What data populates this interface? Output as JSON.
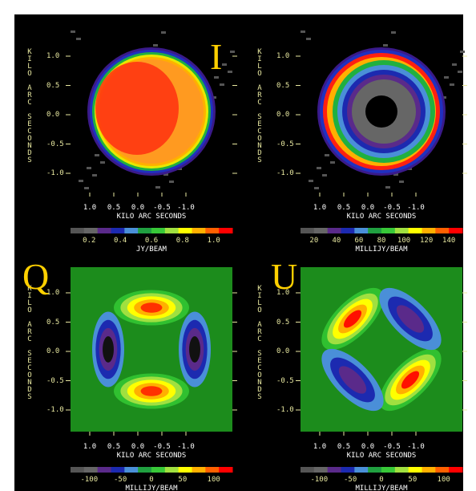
{
  "panels": [
    {
      "label": "I",
      "y_axis_label": "KILO ARC SECONDS",
      "y_ticks": [
        "1.0",
        "0.5",
        "0.0",
        "-0.5",
        "-1.0"
      ],
      "x_ticks": [
        "1.0",
        "0.5",
        "0.0",
        "-0.5",
        "-1.0"
      ],
      "x_axis_label": "KILO ARC SECONDS",
      "colorbar_ticks": [
        "0.2",
        "0.4",
        "0.6",
        "0.8",
        "1.0"
      ],
      "colorbar_unit": "JY/BEAM"
    },
    {
      "y_axis_label": "KILO ARC SECONDS",
      "y_ticks": [
        "1.0",
        "0.5",
        "0.0",
        "-0.5",
        "-1.0"
      ],
      "x_ticks": [
        "1.0",
        "0.5",
        "0.0",
        "-0.5",
        "-1.0"
      ],
      "x_axis_label": "KILO ARC SECONDS",
      "colorbar_ticks": [
        "20",
        "40",
        "60",
        "80",
        "100",
        "120",
        "140"
      ],
      "colorbar_unit": "MILLIJY/BEAM"
    },
    {
      "label": "Q",
      "y_axis_label": "KILO ARC SECONDS",
      "y_ticks": [
        "1.0",
        "0.5",
        "0.0",
        "-0.5",
        "-1.0"
      ],
      "x_ticks": [
        "1.0",
        "0.5",
        "0.0",
        "-0.5",
        "-1.0"
      ],
      "x_axis_label": "KILO ARC SECONDS",
      "colorbar_ticks": [
        "-100",
        "-50",
        "0",
        "50",
        "100"
      ],
      "colorbar_unit": "MILLIJY/BEAM"
    },
    {
      "label": "U",
      "y_axis_label": "KILO ARC SECONDS",
      "y_ticks": [
        "1.0",
        "0.5",
        "0.0",
        "-0.5",
        "-1.0"
      ],
      "x_ticks": [
        "1.0",
        "0.5",
        "0.0",
        "-0.5",
        "-1.0"
      ],
      "x_axis_label": "KILO ARC SECONDS",
      "colorbar_ticks": [
        "-100",
        "-50",
        "0",
        "50",
        "100"
      ],
      "colorbar_unit": "MILLIJY/BEAM"
    }
  ]
}
